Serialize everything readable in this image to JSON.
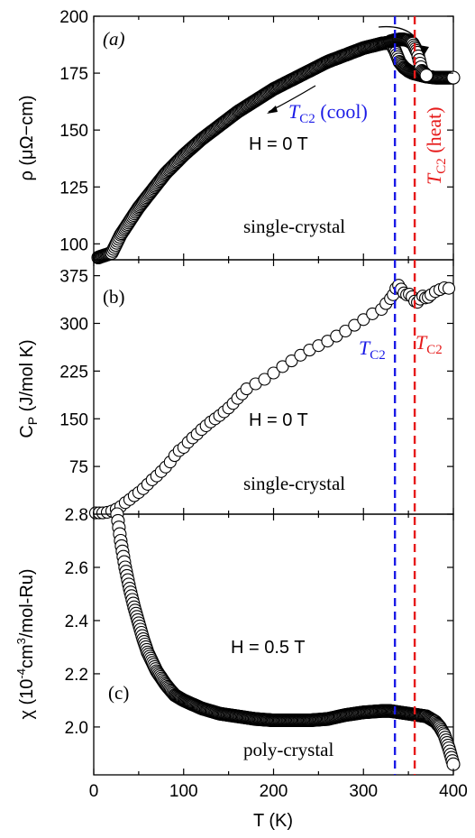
{
  "chart_data": [
    {
      "type": "scatter",
      "panel_label": "(a)",
      "ylabel": "ρ (μΩ−cm)",
      "xlim": [
        0,
        400
      ],
      "ylim": [
        93,
        200
      ],
      "yticks": [
        "200",
        "175",
        "150",
        "125",
        "100"
      ],
      "yticks_values": [
        200,
        175,
        150,
        125,
        100
      ],
      "annotations": [
        "H = 0 T",
        "single-crystal"
      ],
      "tc_labels": {
        "cool": "T",
        "cool_sub": "C2",
        "cool_suffix": " (cool)",
        "heat": "T",
        "heat_sub": "C2",
        "heat_suffix": " (heat)"
      },
      "series": [
        {
          "x": [
            5,
            20,
            30,
            40,
            50,
            60,
            70,
            80,
            100,
            120,
            140,
            160,
            180,
            200,
            220,
            240,
            260,
            280,
            300,
            320,
            330,
            335,
            340,
            345,
            350,
            355,
            360,
            365,
            370,
            380,
            390,
            400
          ],
          "y": [
            94,
            96,
            104,
            110,
            116,
            121,
            126,
            131,
            139,
            146,
            152,
            158,
            163,
            168,
            172,
            176,
            180,
            183,
            186,
            188,
            188.5,
            185,
            180,
            177.5,
            176,
            175,
            174.5,
            174,
            173.5,
            173,
            173,
            173
          ]
        },
        {
          "x": [
            330,
            335,
            340,
            345,
            350,
            355,
            360,
            365,
            370
          ],
          "y": [
            189,
            189.5,
            189.8,
            189.8,
            189.3,
            188,
            184,
            176,
            174
          ]
        }
      ],
      "markers": "open-circle",
      "color": "#000000"
    },
    {
      "type": "scatter",
      "panel_label": "(b)",
      "ylabel": "C",
      "ylabel_sub": "P",
      "ylabel_suffix": " (J/mol K)",
      "xlim": [
        0,
        400
      ],
      "ylim": [
        0,
        400
      ],
      "yticks": [
        "375",
        "300",
        "225",
        "150",
        "75"
      ],
      "yticks_values": [
        375,
        300,
        225,
        150,
        75
      ],
      "annotations": [
        "H = 0 T",
        "single-crystal"
      ],
      "tc_labels": {
        "cool": "T",
        "cool_sub": "C2",
        "heat": "T",
        "heat_sub": "C2"
      },
      "series": [
        {
          "x": [
            2,
            6,
            10,
            15,
            20,
            25,
            30,
            35,
            40,
            45,
            50,
            55,
            60,
            65,
            70,
            75,
            80,
            85,
            90,
            95,
            100,
            105,
            110,
            115,
            120,
            125,
            130,
            135,
            140,
            145,
            150,
            155,
            160,
            165,
            170,
            180,
            190,
            200,
            210,
            220,
            230,
            240,
            250,
            260,
            270,
            280,
            290,
            300,
            310,
            320,
            325,
            330,
            333,
            336,
            339,
            342,
            345,
            348,
            351,
            354,
            357,
            360,
            363,
            366,
            369,
            372,
            375,
            380,
            385,
            390,
            395
          ],
          "y": [
            2,
            2,
            2,
            3,
            5,
            8,
            12,
            18,
            23,
            29,
            34,
            40,
            47,
            54,
            60,
            67,
            74,
            82,
            92,
            100,
            105,
            113,
            120,
            126,
            133,
            139,
            145,
            150,
            155,
            161,
            167,
            174,
            182,
            189,
            197,
            205,
            212,
            222,
            232,
            241,
            250,
            258,
            265,
            272,
            280,
            288,
            297,
            306,
            315,
            322,
            331,
            339,
            345,
            355,
            360,
            354,
            348,
            345,
            346,
            342,
            335,
            333,
            338,
            343,
            340,
            341,
            345,
            350,
            353,
            356,
            355
          ]
        }
      ],
      "markers": "open-circle",
      "color": "#000000"
    },
    {
      "type": "scatter",
      "panel_label": "(c)",
      "ylabel": "χ (10",
      "ylabel_sup": "-4",
      "ylabel_mid": "cm",
      "ylabel_sup2": "3",
      "ylabel_suffix": "/mol-Ru)",
      "xlabel": "T (K)",
      "xlim": [
        0,
        400
      ],
      "ylim": [
        1.82,
        2.8
      ],
      "xticks": [
        "0",
        "100",
        "200",
        "300",
        "400"
      ],
      "xticks_values": [
        0,
        100,
        200,
        300,
        400
      ],
      "yticks": [
        "2.8",
        "2.6",
        "2.4",
        "2.2",
        "2.0"
      ],
      "yticks_values": [
        2.8,
        2.6,
        2.4,
        2.2,
        2.0
      ],
      "annotations": [
        "H = 0.5 T",
        "poly-crystal"
      ],
      "series": [
        {
          "x": [
            26,
            30,
            35,
            40,
            45,
            50,
            55,
            60,
            70,
            80,
            90,
            100,
            110,
            120,
            140,
            160,
            180,
            200,
            220,
            240,
            260,
            280,
            300,
            320,
            330,
            340,
            350,
            360,
            370,
            380,
            385,
            390,
            395,
            400
          ],
          "y": [
            2.8,
            2.7,
            2.6,
            2.52,
            2.45,
            2.39,
            2.33,
            2.28,
            2.21,
            2.16,
            2.12,
            2.1,
            2.085,
            2.07,
            2.05,
            2.04,
            2.03,
            2.025,
            2.025,
            2.025,
            2.03,
            2.045,
            2.055,
            2.06,
            2.06,
            2.055,
            2.05,
            2.045,
            2.04,
            2.02,
            2.0,
            1.97,
            1.92,
            1.86
          ]
        }
      ],
      "markers": "open-circle",
      "color": "#000000"
    }
  ],
  "vlines": [
    {
      "x": 335,
      "color": "#1a1ae6"
    },
    {
      "x": 357,
      "color": "#e61a1a"
    }
  ]
}
